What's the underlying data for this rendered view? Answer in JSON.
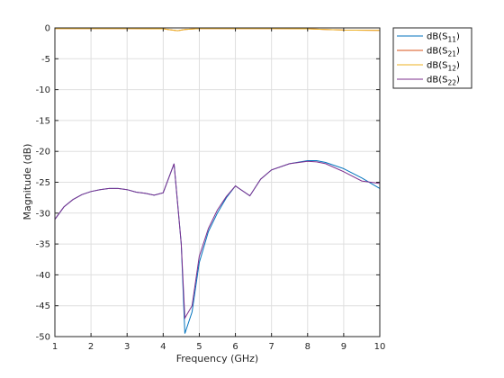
{
  "chart_data": {
    "type": "line",
    "xlabel": "Frequency (GHz)",
    "ylabel": "Magnitude (dB)",
    "xlim": [
      1,
      10
    ],
    "ylim": [
      -50,
      0
    ],
    "xticks": [
      1,
      2,
      3,
      4,
      5,
      6,
      7,
      8,
      9,
      10
    ],
    "yticks": [
      0,
      -5,
      -10,
      -15,
      -20,
      -25,
      -30,
      -35,
      -40,
      -45,
      -50
    ],
    "grid": true,
    "legend_position": "outside-top-right",
    "series": [
      {
        "name": "dB(S11)",
        "name_base": "dB(S",
        "name_sub": "11",
        "name_tail": ")",
        "color": "#0072bd",
        "x": [
          1,
          1.25,
          1.5,
          1.75,
          2,
          2.25,
          2.5,
          2.75,
          3,
          3.25,
          3.5,
          3.75,
          4,
          4.3,
          4.5,
          4.6,
          4.8,
          5,
          5.25,
          5.5,
          5.75,
          6,
          6.1,
          6.4,
          6.7,
          7,
          7.5,
          8,
          8.25,
          8.5,
          9,
          9.5,
          10
        ],
        "y": [
          -31,
          -29,
          -27.8,
          -27,
          -26.5,
          -26.2,
          -26,
          -26,
          -26.2,
          -26.6,
          -26.8,
          -27.1,
          -26.7,
          -22,
          -35,
          -49.5,
          -46,
          -38,
          -33,
          -30,
          -27.5,
          -25.6,
          -26,
          -27.2,
          -24.5,
          -23,
          -22,
          -21.5,
          -21.5,
          -21.8,
          -22.8,
          -24.3,
          -26
        ]
      },
      {
        "name": "dB(S21)",
        "name_base": "dB(S",
        "name_sub": "21",
        "name_tail": ")",
        "color": "#d95319",
        "x": [
          1,
          2,
          3,
          4,
          4.2,
          4.4,
          4.6,
          5,
          6,
          7,
          8,
          8.5,
          9,
          10
        ],
        "y": [
          -0.1,
          -0.1,
          -0.1,
          -0.15,
          -0.3,
          -0.45,
          -0.25,
          -0.1,
          -0.1,
          -0.1,
          -0.15,
          -0.25,
          -0.35,
          -0.4
        ]
      },
      {
        "name": "dB(S12)",
        "name_base": "dB(S",
        "name_sub": "12",
        "name_tail": ")",
        "color": "#edb120",
        "x": [
          1,
          2,
          3,
          4,
          4.2,
          4.4,
          4.6,
          5,
          6,
          7,
          8,
          8.5,
          9,
          10
        ],
        "y": [
          -0.1,
          -0.1,
          -0.1,
          -0.15,
          -0.3,
          -0.45,
          -0.25,
          -0.1,
          -0.1,
          -0.1,
          -0.15,
          -0.25,
          -0.35,
          -0.4
        ]
      },
      {
        "name": "dB(S22)",
        "name_base": "dB(S",
        "name_sub": "22",
        "name_tail": ")",
        "color": "#7e2f8e",
        "x": [
          1,
          1.25,
          1.5,
          1.75,
          2,
          2.25,
          2.5,
          2.75,
          3,
          3.25,
          3.5,
          3.75,
          4,
          4.3,
          4.5,
          4.6,
          4.8,
          5,
          5.25,
          5.5,
          5.75,
          6,
          6.1,
          6.4,
          6.7,
          7,
          7.5,
          8,
          8.25,
          8.5,
          9,
          9.5,
          10
        ],
        "y": [
          -31,
          -29,
          -27.8,
          -27,
          -26.5,
          -26.2,
          -26,
          -26,
          -26.2,
          -26.6,
          -26.8,
          -27.1,
          -26.7,
          -22,
          -35,
          -47,
          -45,
          -37,
          -32.5,
          -29.5,
          -27.3,
          -25.6,
          -26,
          -27.2,
          -24.5,
          -23,
          -22,
          -21.6,
          -21.7,
          -22,
          -23.3,
          -24.8,
          -25.2
        ]
      }
    ]
  }
}
